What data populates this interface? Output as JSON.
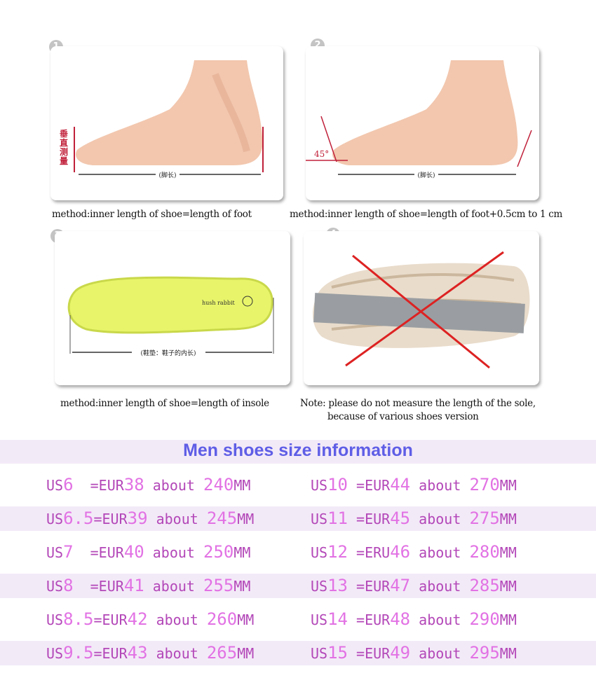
{
  "panels": [
    {
      "number": "1",
      "caption": "method:inner length of shoe=length of foot",
      "labels": {
        "vertical": "垂直测量",
        "length": "(脚长)"
      }
    },
    {
      "number": "2",
      "caption": "method:inner length of shoe=length of foot+0.5cm to 1 cm",
      "labels": {
        "angle": "45°",
        "length": "(脚长)"
      }
    },
    {
      "number": "3",
      "caption": "method:inner length of shoe=length of insole",
      "labels": {
        "brand": "hush rabbit",
        "length": "(鞋垫：鞋子的内长)"
      }
    },
    {
      "number": "4",
      "caption_line1": "Note: please do not measure the length of the sole,",
      "caption_line2": "because of various shoes version"
    }
  ],
  "table": {
    "title": "Men shoes size information",
    "colors": {
      "title": "#5f5ee6",
      "label": "#b347b8",
      "number": "#e272e4",
      "stripe": "#f3eaf8"
    },
    "rows": [
      [
        {
          "us": "6",
          "sep": "  ",
          "eur_label": "=EUR",
          "eur": "38",
          "mm": "240"
        },
        {
          "us": "10",
          "sep": " ",
          "eur_label": "=EUR",
          "eur": "44",
          "mm": "270"
        }
      ],
      [
        {
          "us": "6.5",
          "sep": "",
          "eur_label": "=EUR",
          "eur": "39",
          "mm": "245"
        },
        {
          "us": "11",
          "sep": " ",
          "eur_label": "=EUR",
          "eur": "45",
          "mm": "275"
        }
      ],
      [
        {
          "us": "7",
          "sep": "  ",
          "eur_label": "=EUR",
          "eur": "40",
          "mm": "250"
        },
        {
          "us": "12",
          "sep": " ",
          "eur_label": "=ERU",
          "eur": "46",
          "mm": "280"
        }
      ],
      [
        {
          "us": "8",
          "sep": "  ",
          "eur_label": "=EUR",
          "eur": "41",
          "mm": "255"
        },
        {
          "us": "13",
          "sep": " ",
          "eur_label": "=EUR",
          "eur": "47",
          "mm": "285"
        }
      ],
      [
        {
          "us": "8.5",
          "sep": "",
          "eur_label": "=EUR",
          "eur": "42",
          "mm": "260"
        },
        {
          "us": "14",
          "sep": " ",
          "eur_label": "=EUR",
          "eur": "48",
          "mm": "290"
        }
      ],
      [
        {
          "us": "9.5",
          "sep": "",
          "eur_label": "=EUR",
          "eur": "43",
          "mm": "265"
        },
        {
          "us": "15",
          "sep": " ",
          "eur_label": "=EUR",
          "eur": "49",
          "mm": "295"
        }
      ]
    ],
    "us_label": "US",
    "about_label": "about",
    "mm_label": "MM"
  }
}
